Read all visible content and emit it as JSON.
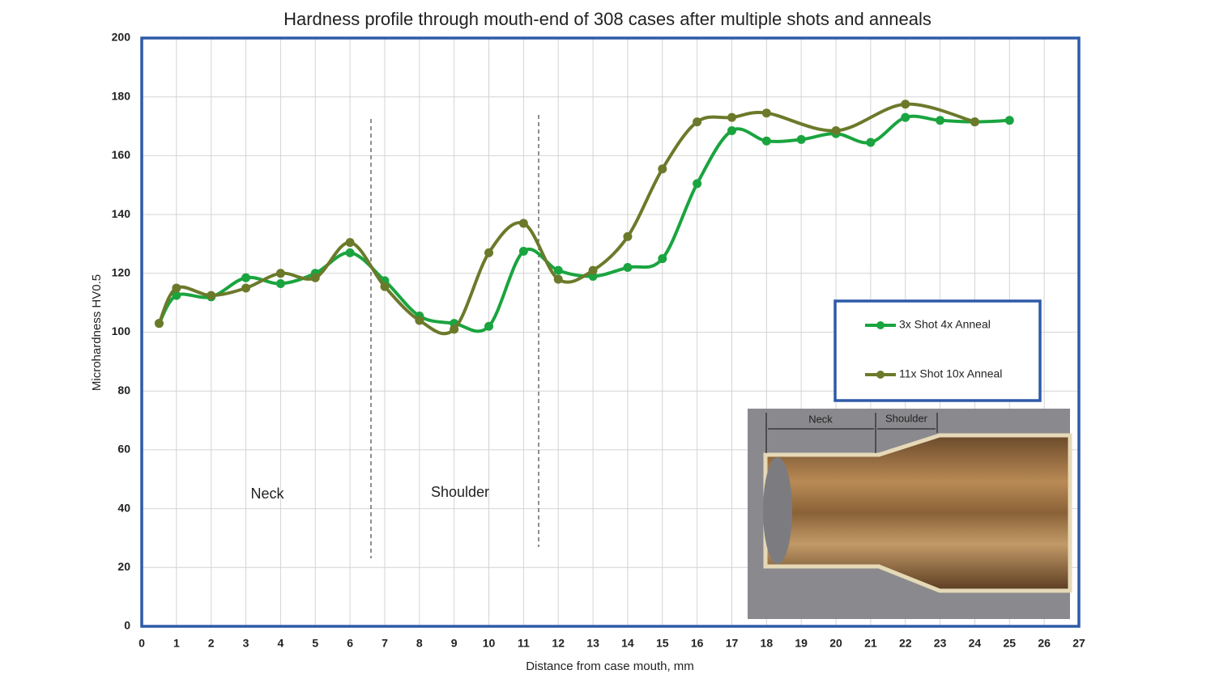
{
  "chart_data": {
    "type": "line",
    "title": "Hardness profile through mouth-end of 308 cases after multiple shots and anneals",
    "xlabel": "Distance from case mouth, mm",
    "ylabel": "Microhardness HV0.5",
    "xlim": [
      0,
      27
    ],
    "xticks": [
      0,
      1,
      2,
      3,
      4,
      5,
      6,
      7,
      8,
      9,
      10,
      11,
      12,
      13,
      14,
      15,
      16,
      17,
      18,
      19,
      20,
      21,
      22,
      23,
      24,
      25,
      26,
      27
    ],
    "ylim": [
      0,
      200
    ],
    "yticks": [
      0,
      20,
      40,
      60,
      80,
      100,
      120,
      140,
      160,
      180,
      200
    ],
    "grid": true,
    "legend": "right",
    "series": [
      {
        "name": "3x Shot 4x Anneal",
        "color": "#1aa43f",
        "x": [
          0.5,
          1,
          2,
          3,
          4,
          5,
          6,
          7,
          8,
          9,
          10,
          11,
          12,
          13,
          14,
          15,
          16,
          17,
          18,
          19,
          20,
          21,
          22,
          23,
          24,
          25
        ],
        "values": [
          103,
          112.5,
          112,
          118.5,
          116.5,
          120,
          127,
          117.5,
          105.5,
          103,
          102,
          127.5,
          121,
          119,
          122,
          125,
          150.5,
          168.5,
          165,
          165.5,
          167.5,
          164.5,
          173,
          172,
          171.5,
          172
        ]
      },
      {
        "name": "11x Shot 10x Anneal",
        "color": "#6b7a2a",
        "x": [
          0.5,
          1,
          2,
          3,
          4,
          5,
          6,
          7,
          8,
          9,
          10,
          11,
          12,
          13,
          14,
          15,
          16,
          17,
          18,
          20,
          22,
          24
        ],
        "values": [
          103,
          115,
          112.5,
          115,
          120,
          118.5,
          130.5,
          115.5,
          104,
          101,
          127,
          137,
          118,
          121,
          132.5,
          155.5,
          171.5,
          173,
          174.5,
          168.5,
          177.5,
          171.5
        ]
      }
    ],
    "annotations": [
      "Neck",
      "Shoulder"
    ],
    "inset_labels": [
      "Neck",
      "Shoulder"
    ]
  }
}
